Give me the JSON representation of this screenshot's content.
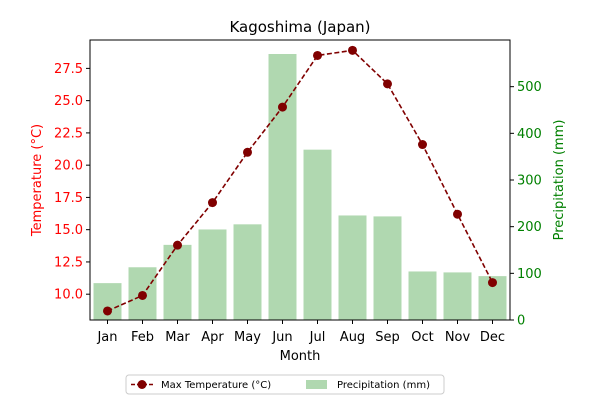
{
  "chart_data": {
    "type": "bar",
    "title": "Kagoshima (Japan)",
    "xlabel": "Month",
    "categories": [
      "Jan",
      "Feb",
      "Mar",
      "Apr",
      "May",
      "Jun",
      "Jul",
      "Aug",
      "Sep",
      "Oct",
      "Nov",
      "Dec"
    ],
    "left_axis": {
      "label": "Temperature (°C)",
      "color": "#ff0000",
      "ticks": [
        "10.0",
        "12.5",
        "15.0",
        "17.5",
        "20.0",
        "22.5",
        "25.0",
        "27.5"
      ]
    },
    "right_axis": {
      "label": "Precipitation (mm)",
      "color": "#008000",
      "ticks": [
        "0",
        "100",
        "200",
        "300",
        "400",
        "500"
      ]
    },
    "series": [
      {
        "name": "Max Temperature (°C)",
        "type": "line",
        "axis": "left",
        "color": "#800000",
        "values": [
          8.7,
          9.9,
          13.8,
          17.1,
          21.0,
          24.5,
          28.5,
          28.9,
          26.3,
          21.6,
          16.2,
          10.9
        ]
      },
      {
        "name": "Precipitation (mm)",
        "type": "bar",
        "axis": "right",
        "color": "#b0d8b0",
        "values": [
          79,
          113,
          161,
          194,
          205,
          570,
          365,
          224,
          222,
          104,
          102,
          94
        ]
      }
    ],
    "ylim_left": [
      8.0,
      29.7
    ],
    "ylim_right": [
      0,
      600
    ],
    "grid": false,
    "legend_position": "bottom-center"
  }
}
